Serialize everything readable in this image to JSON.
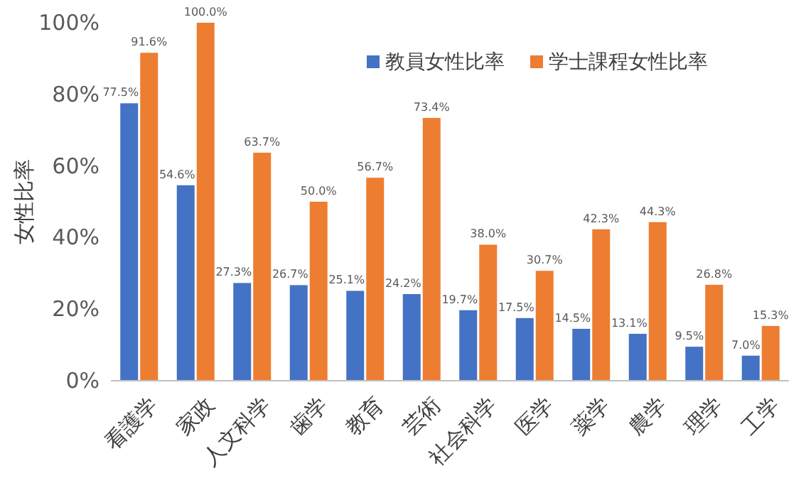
{
  "chart_data": {
    "type": "bar",
    "ylabel": "女性比率",
    "categories": [
      "看護学",
      "家政",
      "人文科学",
      "歯学",
      "教育",
      "芸術",
      "社会科学",
      "医学",
      "薬学",
      "農学",
      "理学",
      "工学"
    ],
    "series": [
      {
        "name": "教員女性比率",
        "color": "#4472c4",
        "values": [
          77.5,
          54.6,
          27.3,
          26.7,
          25.1,
          24.2,
          19.7,
          17.5,
          14.5,
          13.1,
          9.5,
          7.0
        ],
        "value_labels": [
          "77.5%",
          "54.6%",
          "27.3%",
          "26.7%",
          "25.1%",
          "24.2%",
          "19.7%",
          "17.5%",
          "14.5%",
          "13.1%",
          "9.5%",
          "7.0%"
        ]
      },
      {
        "name": "学士課程女性比率",
        "color": "#ed7d31",
        "values": [
          91.6,
          100.0,
          63.7,
          50.0,
          56.7,
          73.4,
          38.0,
          30.7,
          42.3,
          44.3,
          26.8,
          15.3
        ],
        "value_labels": [
          "91.6%",
          "100.0%",
          "63.7%",
          "50.0%",
          "56.7%",
          "73.4%",
          "38.0%",
          "30.7%",
          "42.3%",
          "44.3%",
          "26.8%",
          "15.3%"
        ]
      }
    ],
    "ylim": [
      0,
      100
    ],
    "yticks": [
      {
        "value": 0,
        "label": "0%"
      },
      {
        "value": 20,
        "label": "20%"
      },
      {
        "value": 40,
        "label": "40%"
      },
      {
        "value": 60,
        "label": "60%"
      },
      {
        "value": 80,
        "label": "80%"
      },
      {
        "value": 100,
        "label": "100%"
      }
    ],
    "legend": "top right",
    "grid": false
  }
}
